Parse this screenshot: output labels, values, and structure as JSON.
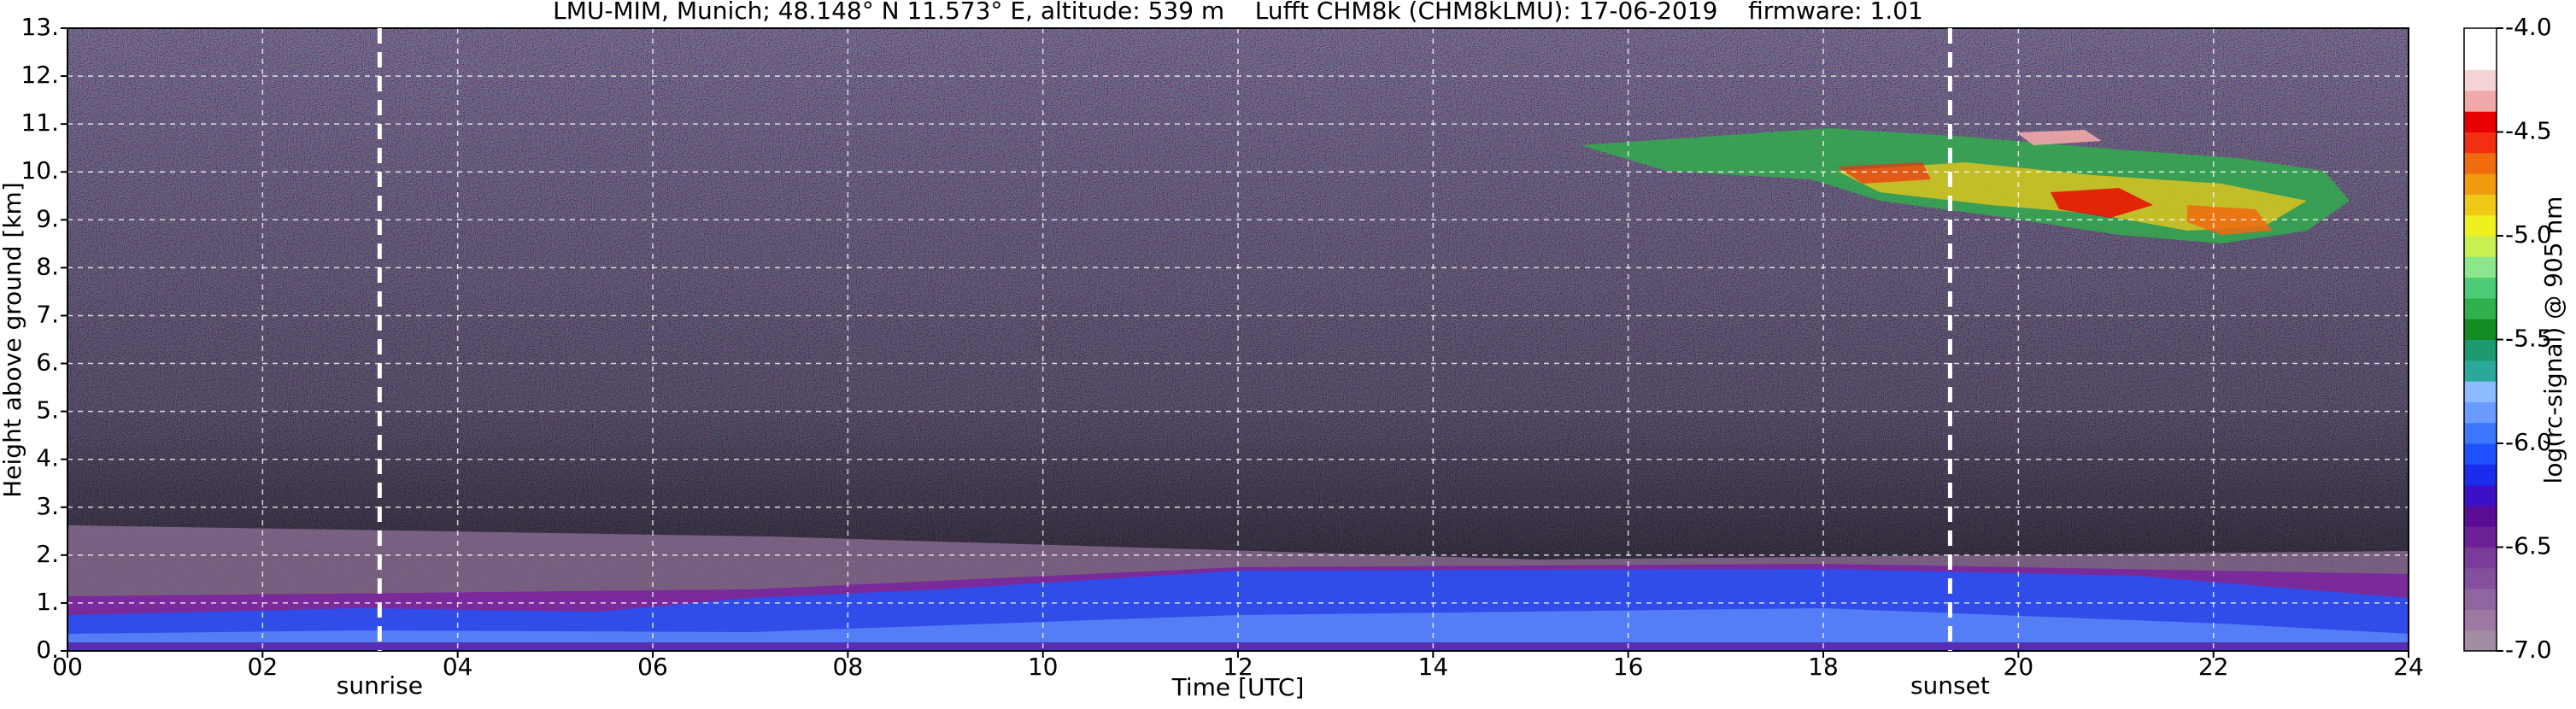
{
  "chart_data": {
    "type": "heatmap",
    "title": "LMU-MIM, Munich; 48.148° N 11.573° E, altitude: 539 m    Lufft CHM8k (CHM8kLMU): 17-06-2019    firmware: 1.01",
    "xlabel": "Time [UTC]",
    "ylabel": "Height above ground [km]",
    "xlim": [
      0,
      24
    ],
    "xticks": [
      {
        "value": 0,
        "label": "00"
      },
      {
        "value": 2,
        "label": "02"
      },
      {
        "value": 4,
        "label": "04"
      },
      {
        "value": 6,
        "label": "06"
      },
      {
        "value": 8,
        "label": "08"
      },
      10,
      12,
      14,
      16,
      18,
      20,
      22,
      24
    ],
    "ylim": [
      0,
      13
    ],
    "yticks": [
      {
        "value": 0,
        "label": "0."
      },
      {
        "value": 1,
        "label": "1."
      },
      {
        "value": 2,
        "label": "2."
      },
      {
        "value": 3,
        "label": "3."
      },
      {
        "value": 4,
        "label": "4."
      },
      {
        "value": 5,
        "label": "5."
      },
      {
        "value": 6,
        "label": "6."
      },
      {
        "value": 7,
        "label": "7."
      },
      {
        "value": 8,
        "label": "8."
      },
      {
        "value": 9,
        "label": "9."
      },
      {
        "value": 10,
        "label": "10."
      },
      {
        "value": 11,
        "label": "11."
      },
      {
        "value": 12,
        "label": "12."
      },
      {
        "value": 13,
        "label": "13."
      }
    ],
    "grid": true,
    "annotations": [
      {
        "x": 3.2,
        "text": "sunrise"
      },
      {
        "x": 19.3,
        "text": "sunset"
      }
    ],
    "colorbar": {
      "label": "log(rc-signal) @ 905 nm",
      "lim": [
        -7,
        -4
      ],
      "ticks": [
        {
          "value": -7,
          "label": "-7.0"
        },
        {
          "value": -6.5,
          "label": "-6.5"
        },
        {
          "value": -6,
          "label": "-6.0"
        },
        {
          "value": -5.5,
          "label": "-5.5"
        },
        {
          "value": -5,
          "label": "-5.0"
        },
        {
          "value": -4.5,
          "label": "-4.5"
        },
        {
          "value": -4,
          "label": "-4.0"
        }
      ],
      "colors": [
        "#a58ca5",
        "#9c78a2",
        "#9066a0",
        "#84509e",
        "#7a3c9a",
        "#6c2296",
        "#5a0c94",
        "#3a10c8",
        "#1c2cec",
        "#1e50ff",
        "#3c78ff",
        "#6a9cff",
        "#8cbcff",
        "#2aa89a",
        "#1a9a6e",
        "#148c24",
        "#30b04c",
        "#4ccc78",
        "#8ce68c",
        "#c8f050",
        "#f0f020",
        "#f0c818",
        "#f09a10",
        "#f06a10",
        "#f03010",
        "#e80000",
        "#f0a8a8",
        "#f4d4d4",
        "#ffffff",
        "#ffffff"
      ]
    }
  }
}
